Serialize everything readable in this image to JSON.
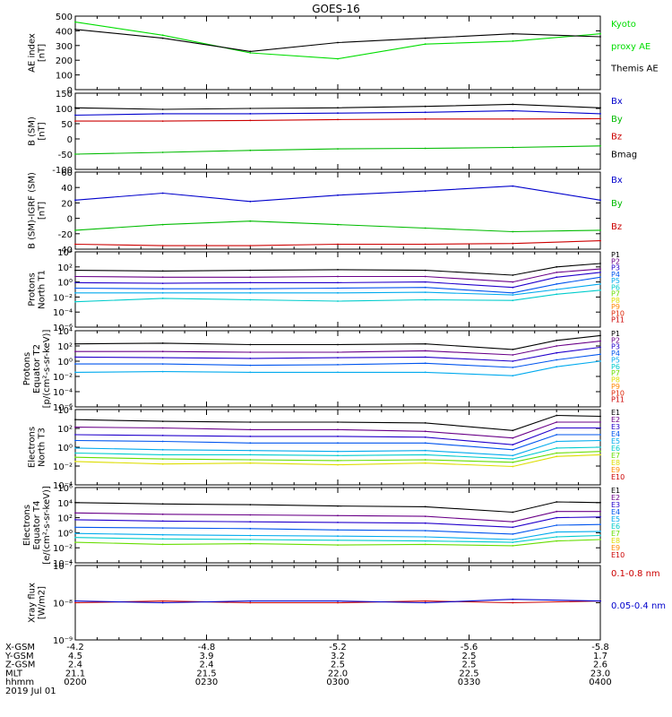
{
  "title": "GOES-16",
  "date_label": "2019 Jul 01",
  "x_axis": {
    "rows": [
      {
        "name": "X-GSM",
        "values": [
          "-4.2",
          "-4.8",
          "-5.2",
          "-5.6",
          "-5.8"
        ]
      },
      {
        "name": "Y-GSM",
        "values": [
          "4.5",
          "3.9",
          "3.2",
          "2.5",
          "1.7"
        ]
      },
      {
        "name": "Z-GSM",
        "values": [
          "2.4",
          "2.4",
          "2.5",
          "2.5",
          "2.6"
        ]
      },
      {
        "name": "MLT",
        "values": [
          "21.1",
          "21.5",
          "22.0",
          "22.5",
          "23.0"
        ]
      },
      {
        "name": "hhmm",
        "values": [
          "0200",
          "0230",
          "0300",
          "0330",
          "0400"
        ]
      }
    ]
  },
  "panels": [
    {
      "id": "ae",
      "ylabel": [
        "AE index",
        "[nT]"
      ],
      "ticks": [
        "500",
        "400",
        "300",
        "200",
        "100",
        "0"
      ],
      "legend": [
        {
          "text": "Kyoto",
          "color": "#00dd00"
        },
        {
          "text": "proxy AE",
          "color": "#00dd00"
        },
        {
          "text": "Themis AE",
          "color": "#000000"
        }
      ]
    },
    {
      "id": "bsm",
      "ylabel": [
        "B (SM)",
        "[nT]"
      ],
      "ticks": [
        "150",
        "100",
        "50",
        "0",
        "-50",
        "-100"
      ],
      "legend": [
        {
          "text": "Bx",
          "color": "#0000cc"
        },
        {
          "text": "By",
          "color": "#00bb00"
        },
        {
          "text": "Bz",
          "color": "#cc0000"
        },
        {
          "text": "Bmag",
          "color": "#000000"
        }
      ]
    },
    {
      "id": "bigrf",
      "ylabel": [
        "B (SM)-IGRF (SM)",
        "[nT]"
      ],
      "ticks": [
        "60",
        "40",
        "20",
        "0",
        "-20",
        "-40"
      ],
      "legend": [
        {
          "text": "Bx",
          "color": "#0000cc"
        },
        {
          "text": "By",
          "color": "#00bb00"
        },
        {
          "text": "Bz",
          "color": "#cc0000"
        }
      ]
    },
    {
      "id": "protons_t1",
      "ylabel": [
        "Protons",
        "North T1"
      ],
      "ticks": [
        "10⁴",
        "10²",
        "10⁰",
        "10⁻²",
        "10⁻⁴",
        "10⁻⁶"
      ],
      "legend": [
        {
          "text": "P1",
          "color": "#000000"
        },
        {
          "text": "P2",
          "color": "#6a0088"
        },
        {
          "text": "P3",
          "color": "#2200cc"
        },
        {
          "text": "P4",
          "color": "#0055ee"
        },
        {
          "text": "P5",
          "color": "#00aaee"
        },
        {
          "text": "P6",
          "color": "#00cccc"
        },
        {
          "text": "P7",
          "color": "#66dd00"
        },
        {
          "text": "P8",
          "color": "#dddd00"
        },
        {
          "text": "P9",
          "color": "#ff8800"
        },
        {
          "text": "P10",
          "color": "#dd2200"
        },
        {
          "text": "P11",
          "color": "#cc0000"
        }
      ]
    },
    {
      "id": "protons_t2",
      "ylabel": [
        "Protons",
        "Equator T2",
        "[p/(cm²-s-sr-keV)]"
      ],
      "ticks": [
        "10⁴",
        "10²",
        "10⁰",
        "10⁻²",
        "10⁻⁴",
        "10⁻⁶"
      ],
      "legend": [
        {
          "text": "P1",
          "color": "#000000"
        },
        {
          "text": "P2",
          "color": "#6a0088"
        },
        {
          "text": "P3",
          "color": "#2200cc"
        },
        {
          "text": "P4",
          "color": "#0055ee"
        },
        {
          "text": "P5",
          "color": "#00aaee"
        },
        {
          "text": "P6",
          "color": "#00cccc"
        },
        {
          "text": "P7",
          "color": "#66dd00"
        },
        {
          "text": "P8",
          "color": "#dddd00"
        },
        {
          "text": "P9",
          "color": "#ff8800"
        },
        {
          "text": "P10",
          "color": "#dd2200"
        },
        {
          "text": "P11",
          "color": "#cc0000"
        }
      ]
    },
    {
      "id": "electrons_t3",
      "ylabel": [
        "Electrons",
        "North T3"
      ],
      "ticks": [
        "10⁴",
        "10²",
        "10⁰",
        "10⁻²",
        "10⁻⁴"
      ],
      "legend": [
        {
          "text": "E1",
          "color": "#000000"
        },
        {
          "text": "E2",
          "color": "#6a0088"
        },
        {
          "text": "E3",
          "color": "#2200cc"
        },
        {
          "text": "E4",
          "color": "#0055ee"
        },
        {
          "text": "E5",
          "color": "#00aaee"
        },
        {
          "text": "E6",
          "color": "#00cccc"
        },
        {
          "text": "E7",
          "color": "#66dd00"
        },
        {
          "text": "E8",
          "color": "#dddd00"
        },
        {
          "text": "E9",
          "color": "#ff8800"
        },
        {
          "text": "E10",
          "color": "#cc0000"
        }
      ]
    },
    {
      "id": "electrons_t4",
      "ylabel": [
        "Electrons",
        "Equator T4",
        "[e/(cm²-s-sr-keV)]"
      ],
      "ticks": [
        "10⁶",
        "10⁴",
        "10²",
        "10⁰",
        "10⁻²",
        "10⁻⁴"
      ],
      "legend": [
        {
          "text": "E1",
          "color": "#000000"
        },
        {
          "text": "E2",
          "color": "#6a0088"
        },
        {
          "text": "E3",
          "color": "#2200cc"
        },
        {
          "text": "E4",
          "color": "#0055ee"
        },
        {
          "text": "E5",
          "color": "#00aaee"
        },
        {
          "text": "E6",
          "color": "#00cccc"
        },
        {
          "text": "E7",
          "color": "#66dd00"
        },
        {
          "text": "E8",
          "color": "#dddd00"
        },
        {
          "text": "E9",
          "color": "#ff8800"
        },
        {
          "text": "E10",
          "color": "#cc0000"
        }
      ]
    },
    {
      "id": "xray",
      "ylabel": [
        "Xray flux",
        "[W/m2]"
      ],
      "ticks": [
        "10⁻⁷",
        "10⁻⁸",
        "10⁻⁹"
      ],
      "legend": [
        {
          "text": "0.1-0.8 nm",
          "color": "#cc0000"
        },
        {
          "text": "0.05-0.4 nm",
          "color": "#0000cc"
        }
      ]
    }
  ],
  "chart_data": [
    {
      "type": "line",
      "panel": "ae",
      "ylim": [
        0,
        500
      ],
      "x_minutes": [
        0,
        20,
        40,
        60,
        80,
        100,
        120
      ],
      "series": [
        {
          "name": "Kyoto",
          "color": "#00dd00",
          "values": [
            460,
            370,
            250,
            210,
            310,
            330,
            380
          ]
        },
        {
          "name": "Themis AE",
          "color": "#000000",
          "values": [
            410,
            350,
            260,
            320,
            350,
            380,
            360
          ]
        }
      ]
    },
    {
      "type": "line",
      "panel": "bsm",
      "ylim": [
        -110,
        150
      ],
      "x_minutes": [
        0,
        20,
        40,
        60,
        80,
        100,
        120
      ],
      "series": [
        {
          "name": "Bmag",
          "color": "#000000",
          "values": [
            100,
            95,
            98,
            100,
            105,
            112,
            100
          ]
        },
        {
          "name": "Bx",
          "color": "#0000cc",
          "values": [
            75,
            80,
            80,
            82,
            85,
            90,
            80
          ]
        },
        {
          "name": "Bz",
          "color": "#cc0000",
          "values": [
            55,
            55,
            57,
            60,
            62,
            62,
            63
          ]
        },
        {
          "name": "By",
          "color": "#00bb00",
          "values": [
            -58,
            -52,
            -45,
            -40,
            -38,
            -35,
            -30
          ]
        }
      ]
    },
    {
      "type": "line",
      "panel": "bigrf",
      "ylim": [
        -45,
        65
      ],
      "x_minutes": [
        0,
        20,
        40,
        60,
        80,
        100,
        120
      ],
      "series": [
        {
          "name": "Bx",
          "color": "#0000cc",
          "values": [
            25,
            35,
            23,
            32,
            38,
            45,
            25
          ]
        },
        {
          "name": "By",
          "color": "#00bb00",
          "values": [
            -18,
            -10,
            -5,
            -10,
            -15,
            -20,
            -18
          ]
        },
        {
          "name": "Bz",
          "color": "#cc0000",
          "values": [
            -38,
            -40,
            -40,
            -38,
            -38,
            -37,
            -33
          ]
        }
      ]
    },
    {
      "type": "line",
      "panel": "protons_t1",
      "log": true,
      "ylim_exp": [
        -7,
        4
      ],
      "x_minutes": [
        0,
        20,
        40,
        60,
        80,
        100,
        110,
        120
      ],
      "series": [
        {
          "name": "P1",
          "color": "#000000",
          "values_log10": [
            1.3,
            1.2,
            1.3,
            1.4,
            1.3,
            0.6,
            1.8,
            2.3
          ]
        },
        {
          "name": "P2",
          "color": "#6a0088",
          "values_log10": [
            0.4,
            0.3,
            0.3,
            0.4,
            0.4,
            -0.4,
            1.0,
            1.5
          ]
        },
        {
          "name": "P3",
          "color": "#2200cc",
          "values_log10": [
            -0.5,
            -0.6,
            -0.5,
            -0.5,
            -0.4,
            -1.2,
            0.3,
            1.0
          ]
        },
        {
          "name": "P4",
          "color": "#0055ee",
          "values_log10": [
            -1.3,
            -1.4,
            -1.4,
            -1.3,
            -1.2,
            -2.0,
            -0.7,
            0.3
          ]
        },
        {
          "name": "P5",
          "color": "#00aaee",
          "values_log10": [
            -2.0,
            -2.0,
            -2.0,
            -2.0,
            -1.9,
            -2.3,
            -1.5,
            -0.7
          ]
        },
        {
          "name": "P6",
          "color": "#00cccc",
          "values_log10": [
            -3.3,
            -2.8,
            -3.0,
            -3.2,
            -3.0,
            -3.1,
            -2.2,
            -1.6
          ]
        }
      ]
    },
    {
      "type": "line",
      "panel": "protons_t2",
      "log": true,
      "ylim_exp": [
        -7,
        4
      ],
      "x_minutes": [
        0,
        20,
        40,
        60,
        80,
        100,
        110,
        120
      ],
      "series": [
        {
          "name": "P1",
          "color": "#000000",
          "values_log10": [
            2.1,
            2.2,
            2.0,
            2.0,
            2.1,
            1.3,
            2.6,
            3.3
          ]
        },
        {
          "name": "P2",
          "color": "#6a0088",
          "values_log10": [
            1.0,
            1.0,
            0.9,
            0.9,
            1.1,
            0.5,
            1.8,
            2.5
          ]
        },
        {
          "name": "P3",
          "color": "#2200cc",
          "values_log10": [
            0.2,
            0.1,
            0.0,
            0.1,
            0.2,
            -0.4,
            0.8,
            1.6
          ]
        },
        {
          "name": "P4",
          "color": "#0055ee",
          "values_log10": [
            -0.8,
            -0.8,
            -1.0,
            -0.9,
            -0.7,
            -1.3,
            -0.2,
            0.6
          ]
        },
        {
          "name": "P5",
          "color": "#00aaee",
          "values_log10": [
            -2.0,
            -1.9,
            -2.0,
            -2.0,
            -2.0,
            -2.5,
            -1.2,
            -0.4
          ]
        }
      ]
    },
    {
      "type": "line",
      "panel": "electrons_t3",
      "log": true,
      "ylim_exp": [
        -5,
        4
      ],
      "x_minutes": [
        0,
        20,
        40,
        60,
        80,
        100,
        110,
        120
      ],
      "series": [
        {
          "name": "E1",
          "color": "#000000",
          "values_log10": [
            2.8,
            2.6,
            2.5,
            2.5,
            2.4,
            1.5,
            3.3,
            3.2
          ]
        },
        {
          "name": "E2",
          "color": "#6a0088",
          "values_log10": [
            1.9,
            1.8,
            1.6,
            1.6,
            1.4,
            0.6,
            2.5,
            2.5
          ]
        },
        {
          "name": "E3",
          "color": "#2200cc",
          "values_log10": [
            1.0,
            0.9,
            0.8,
            0.8,
            0.7,
            -0.2,
            1.8,
            1.8
          ]
        },
        {
          "name": "E4",
          "color": "#0055ee",
          "values_log10": [
            0.3,
            0.2,
            0.0,
            0.0,
            0.0,
            -0.8,
            1.0,
            1.0
          ]
        },
        {
          "name": "E5",
          "color": "#00aaee",
          "values_log10": [
            -0.6,
            -0.8,
            -0.9,
            -1.0,
            -0.9,
            -1.5,
            0.2,
            0.3
          ]
        },
        {
          "name": "E6",
          "color": "#00cccc",
          "values_log10": [
            -1.2,
            -1.4,
            -1.4,
            -1.5,
            -1.4,
            -1.9,
            -0.6,
            -0.5
          ]
        },
        {
          "name": "E7",
          "color": "#66dd00",
          "values_log10": [
            -1.7,
            -1.9,
            -2.0,
            -2.1,
            -2.0,
            -2.3,
            -1.2,
            -1.0
          ]
        },
        {
          "name": "E8",
          "color": "#dddd00",
          "values_log10": [
            -2.2,
            -2.5,
            -2.4,
            -2.6,
            -2.4,
            -2.8,
            -1.6,
            -1.4
          ]
        }
      ]
    },
    {
      "type": "line",
      "panel": "electrons_t4",
      "log": true,
      "ylim_exp": [
        -5,
        6
      ],
      "x_minutes": [
        0,
        20,
        40,
        60,
        80,
        100,
        110,
        120
      ],
      "series": [
        {
          "name": "E1",
          "color": "#000000",
          "values_log10": [
            3.8,
            3.6,
            3.5,
            3.3,
            3.2,
            2.4,
            3.9,
            3.8
          ]
        },
        {
          "name": "E2",
          "color": "#6a0088",
          "values_log10": [
            2.3,
            2.1,
            2.0,
            1.9,
            1.8,
            1.0,
            2.5,
            2.5
          ]
        },
        {
          "name": "E3",
          "color": "#2200cc",
          "values_log10": [
            1.3,
            1.1,
            1.0,
            0.9,
            0.8,
            0.2,
            1.6,
            1.7
          ]
        },
        {
          "name": "E4",
          "color": "#0055ee",
          "values_log10": [
            0.2,
            0.1,
            0.0,
            -0.2,
            -0.3,
            -0.8,
            0.5,
            0.6
          ]
        },
        {
          "name": "E5",
          "color": "#00aaee",
          "values_log10": [
            -0.7,
            -0.9,
            -1.0,
            -1.1,
            -1.2,
            -1.6,
            -0.5,
            -0.4
          ]
        },
        {
          "name": "E6",
          "color": "#00cccc",
          "values_log10": [
            -1.3,
            -1.5,
            -1.6,
            -1.7,
            -1.8,
            -2.0,
            -1.2,
            -1.0
          ]
        },
        {
          "name": "E7",
          "color": "#66dd00",
          "values_log10": [
            -2.0,
            -2.3,
            -2.2,
            -2.4,
            -2.3,
            -2.5,
            -1.8,
            -1.6
          ]
        }
      ]
    },
    {
      "type": "line",
      "panel": "xray",
      "log": true,
      "ylim_exp": [
        -9.2,
        -7
      ],
      "x_minutes": [
        0,
        20,
        40,
        60,
        80,
        100,
        120
      ],
      "series": [
        {
          "name": "0.1-0.8 nm",
          "color": "#cc0000",
          "values_log10": [
            -8.1,
            -8.05,
            -8.1,
            -8.1,
            -8.05,
            -8.1,
            -8.05
          ]
        },
        {
          "name": "0.05-0.4 nm",
          "color": "#0000cc",
          "values_log10": [
            -8.05,
            -8.1,
            -8.05,
            -8.05,
            -8.1,
            -8.0,
            -8.05
          ]
        }
      ]
    }
  ]
}
